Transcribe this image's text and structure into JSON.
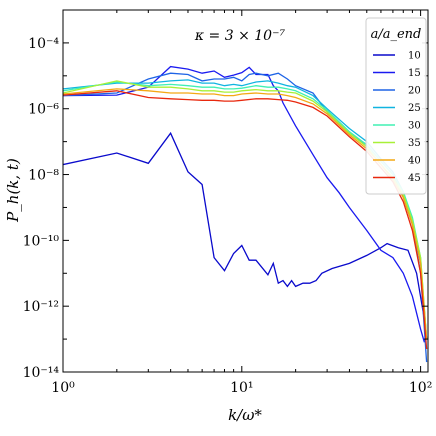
{
  "chart_data": {
    "type": "line",
    "xscale": "log",
    "yscale": "log",
    "xlim": [
      1,
      110
    ],
    "ylim": [
      1e-14,
      0.001
    ],
    "xlabel": "k/ω*",
    "ylabel": "P_h(k, t)",
    "annotation": "κ = 3 × 10⁻⁷",
    "legend_title": "a/a_end",
    "legend_position": "top-right",
    "x_ticks": [
      {
        "value": 1,
        "label": "10⁰"
      },
      {
        "value": 10,
        "label": "10¹"
      },
      {
        "value": 100,
        "label": "10²"
      }
    ],
    "y_ticks": [
      {
        "value": 0.0001,
        "label": "10⁻⁴"
      },
      {
        "value": 1e-06,
        "label": "10⁻⁶"
      },
      {
        "value": 1e-08,
        "label": "10⁻⁸"
      },
      {
        "value": 1e-10,
        "label": "10⁻¹⁰"
      },
      {
        "value": 1e-12,
        "label": "10⁻¹²"
      },
      {
        "value": 1e-14,
        "label": "10⁻¹⁴"
      }
    ],
    "series": [
      {
        "name": "10",
        "color": "#0a0acc",
        "points": [
          [
            1,
            2e-08
          ],
          [
            2,
            4.5e-08
          ],
          [
            3,
            2.2e-08
          ],
          [
            4,
            1.8e-07
          ],
          [
            5,
            1.2e-08
          ],
          [
            6,
            5e-09
          ],
          [
            7,
            3e-11
          ],
          [
            8,
            1.2e-11
          ],
          [
            9,
            4e-11
          ],
          [
            10,
            7e-11
          ],
          [
            11,
            2.5e-11
          ],
          [
            12,
            2.5e-11
          ],
          [
            14,
            9e-12
          ],
          [
            15,
            2e-11
          ],
          [
            16,
            5e-12
          ],
          [
            17,
            6e-12
          ],
          [
            18,
            4e-12
          ],
          [
            19,
            6e-12
          ],
          [
            20,
            4e-12
          ],
          [
            22,
            5e-12
          ],
          [
            24,
            5e-12
          ],
          [
            26,
            6e-12
          ],
          [
            28,
            1e-11
          ],
          [
            32,
            1.4e-11
          ],
          [
            40,
            2e-11
          ],
          [
            50,
            3.5e-11
          ],
          [
            60,
            6e-11
          ],
          [
            65,
            8e-11
          ],
          [
            75,
            6e-11
          ],
          [
            85,
            5e-11
          ],
          [
            95,
            1e-11
          ],
          [
            105,
            4e-13
          ]
        ]
      },
      {
        "name": "15",
        "color": "#1a1af0",
        "points": [
          [
            1,
            2.5e-06
          ],
          [
            2,
            2.6e-06
          ],
          [
            3,
            4.5e-06
          ],
          [
            4,
            1.9e-05
          ],
          [
            5,
            1.6e-05
          ],
          [
            6,
            1.2e-05
          ],
          [
            7,
            1.4e-05
          ],
          [
            8,
            9e-06
          ],
          [
            9,
            1.05e-05
          ],
          [
            10,
            1.25e-05
          ],
          [
            11,
            1.8e-05
          ],
          [
            12,
            1.1e-05
          ],
          [
            14,
            1.1e-05
          ],
          [
            15,
            5e-06
          ],
          [
            16,
            3.5e-06
          ],
          [
            17,
            1.5e-06
          ],
          [
            20,
            3e-07
          ],
          [
            25,
            4e-08
          ],
          [
            30,
            8e-09
          ],
          [
            35,
            2.8e-09
          ],
          [
            40,
            1e-09
          ],
          [
            50,
            2e-10
          ],
          [
            60,
            5e-11
          ],
          [
            70,
            3e-11
          ],
          [
            80,
            1e-11
          ],
          [
            90,
            2e-12
          ],
          [
            100,
            2e-13
          ],
          [
            105,
            8e-14
          ]
        ]
      },
      {
        "name": "20",
        "color": "#1e64e6",
        "points": [
          [
            1,
            2.5e-06
          ],
          [
            2,
            3e-06
          ],
          [
            3,
            8e-06
          ],
          [
            4,
            1.2e-05
          ],
          [
            5,
            1.1e-05
          ],
          [
            6,
            7e-06
          ],
          [
            7,
            8e-06
          ],
          [
            8,
            8e-06
          ],
          [
            9,
            9e-06
          ],
          [
            10,
            7e-06
          ],
          [
            11,
            1.1e-05
          ],
          [
            12,
            1.2e-05
          ],
          [
            14,
            1e-05
          ],
          [
            16,
            1.2e-05
          ],
          [
            18,
            8e-06
          ],
          [
            20,
            5e-06
          ],
          [
            25,
            3e-06
          ],
          [
            30,
            8e-07
          ],
          [
            40,
            1.8e-07
          ],
          [
            50,
            8e-08
          ],
          [
            60,
            2.5e-08
          ],
          [
            70,
            1e-08
          ],
          [
            80,
            2e-09
          ],
          [
            90,
            3e-10
          ],
          [
            100,
            1e-11
          ],
          [
            108,
            2e-14
          ]
        ]
      },
      {
        "name": "25",
        "color": "#10b4e0",
        "points": [
          [
            1,
            4e-06
          ],
          [
            2,
            6e-06
          ],
          [
            3,
            6e-06
          ],
          [
            4,
            7e-06
          ],
          [
            5,
            7.5e-06
          ],
          [
            6,
            6e-06
          ],
          [
            7,
            6e-06
          ],
          [
            8,
            5e-06
          ],
          [
            9,
            5.5e-06
          ],
          [
            10,
            5e-06
          ],
          [
            12,
            6.5e-06
          ],
          [
            14,
            7e-06
          ],
          [
            16,
            6e-06
          ],
          [
            18,
            5e-06
          ],
          [
            20,
            4.5e-06
          ],
          [
            25,
            2.5e-06
          ],
          [
            30,
            1e-06
          ],
          [
            40,
            2.5e-07
          ],
          [
            50,
            1e-07
          ],
          [
            60,
            3e-08
          ],
          [
            70,
            1.2e-08
          ],
          [
            80,
            3e-09
          ],
          [
            90,
            4e-10
          ],
          [
            100,
            2e-11
          ],
          [
            108,
            1e-13
          ]
        ]
      },
      {
        "name": "30",
        "color": "#40f0b4",
        "points": [
          [
            1,
            3.5e-06
          ],
          [
            2,
            6.5e-06
          ],
          [
            3,
            5e-06
          ],
          [
            4,
            5.5e-06
          ],
          [
            5,
            5e-06
          ],
          [
            6,
            4.5e-06
          ],
          [
            7,
            4.5e-06
          ],
          [
            8,
            4e-06
          ],
          [
            9,
            4e-06
          ],
          [
            10,
            4.2e-06
          ],
          [
            12,
            5e-06
          ],
          [
            14,
            4.5e-06
          ],
          [
            16,
            4.5e-06
          ],
          [
            18,
            4e-06
          ],
          [
            20,
            3.5e-06
          ],
          [
            25,
            2e-06
          ],
          [
            30,
            9e-07
          ],
          [
            40,
            2e-07
          ],
          [
            50,
            8e-08
          ],
          [
            60,
            2.5e-08
          ],
          [
            70,
            1e-08
          ],
          [
            80,
            3e-09
          ],
          [
            90,
            5e-10
          ],
          [
            100,
            3e-11
          ],
          [
            108,
            1e-13
          ]
        ]
      },
      {
        "name": "35",
        "color": "#a8f038",
        "points": [
          [
            1,
            3e-06
          ],
          [
            2,
            7e-06
          ],
          [
            3,
            4.5e-06
          ],
          [
            4,
            4.5e-06
          ],
          [
            5,
            4e-06
          ],
          [
            6,
            3.5e-06
          ],
          [
            7,
            3.5e-06
          ],
          [
            8,
            3.2e-06
          ],
          [
            9,
            3.2e-06
          ],
          [
            10,
            3.5e-06
          ],
          [
            12,
            3.8e-06
          ],
          [
            14,
            3.5e-06
          ],
          [
            16,
            3.5e-06
          ],
          [
            18,
            3.2e-06
          ],
          [
            20,
            3e-06
          ],
          [
            25,
            1.7e-06
          ],
          [
            30,
            8e-07
          ],
          [
            40,
            1.8e-07
          ],
          [
            50,
            7e-08
          ],
          [
            60,
            2e-08
          ],
          [
            70,
            8e-09
          ],
          [
            80,
            2.5e-09
          ],
          [
            90,
            4e-10
          ],
          [
            100,
            3e-11
          ],
          [
            108,
            1e-13
          ]
        ]
      },
      {
        "name": "40",
        "color": "#f4a814",
        "points": [
          [
            1,
            2.8e-06
          ],
          [
            2,
            4e-06
          ],
          [
            3,
            3.5e-06
          ],
          [
            4,
            3e-06
          ],
          [
            5,
            3e-06
          ],
          [
            6,
            2.8e-06
          ],
          [
            7,
            2.8e-06
          ],
          [
            8,
            2.5e-06
          ],
          [
            9,
            2.5e-06
          ],
          [
            10,
            2.8e-06
          ],
          [
            12,
            3e-06
          ],
          [
            14,
            2.8e-06
          ],
          [
            16,
            2.8e-06
          ],
          [
            18,
            2.5e-06
          ],
          [
            20,
            2.2e-06
          ],
          [
            25,
            1.4e-06
          ],
          [
            30,
            7e-07
          ],
          [
            40,
            1.6e-07
          ],
          [
            50,
            6e-08
          ],
          [
            60,
            2e-08
          ],
          [
            70,
            7e-09
          ],
          [
            80,
            2e-09
          ],
          [
            90,
            3e-10
          ],
          [
            100,
            2e-11
          ],
          [
            108,
            1e-13
          ]
        ]
      },
      {
        "name": "45",
        "color": "#e8280e",
        "points": [
          [
            1,
            2.6e-06
          ],
          [
            2,
            3.5e-06
          ],
          [
            3,
            2.2e-06
          ],
          [
            4,
            2e-06
          ],
          [
            5,
            1.9e-06
          ],
          [
            6,
            1.8e-06
          ],
          [
            7,
            1.8e-06
          ],
          [
            8,
            1.7e-06
          ],
          [
            9,
            1.7e-06
          ],
          [
            10,
            1.8e-06
          ],
          [
            12,
            2e-06
          ],
          [
            14,
            2e-06
          ],
          [
            16,
            1.9e-06
          ],
          [
            18,
            1.8e-06
          ],
          [
            20,
            1.6e-06
          ],
          [
            25,
            1.1e-06
          ],
          [
            30,
            6e-07
          ],
          [
            40,
            1.4e-07
          ],
          [
            50,
            5e-08
          ],
          [
            60,
            1.6e-08
          ],
          [
            70,
            6e-09
          ],
          [
            80,
            1.5e-09
          ],
          [
            90,
            2e-10
          ],
          [
            100,
            1e-11
          ],
          [
            108,
            5e-14
          ]
        ]
      }
    ]
  }
}
